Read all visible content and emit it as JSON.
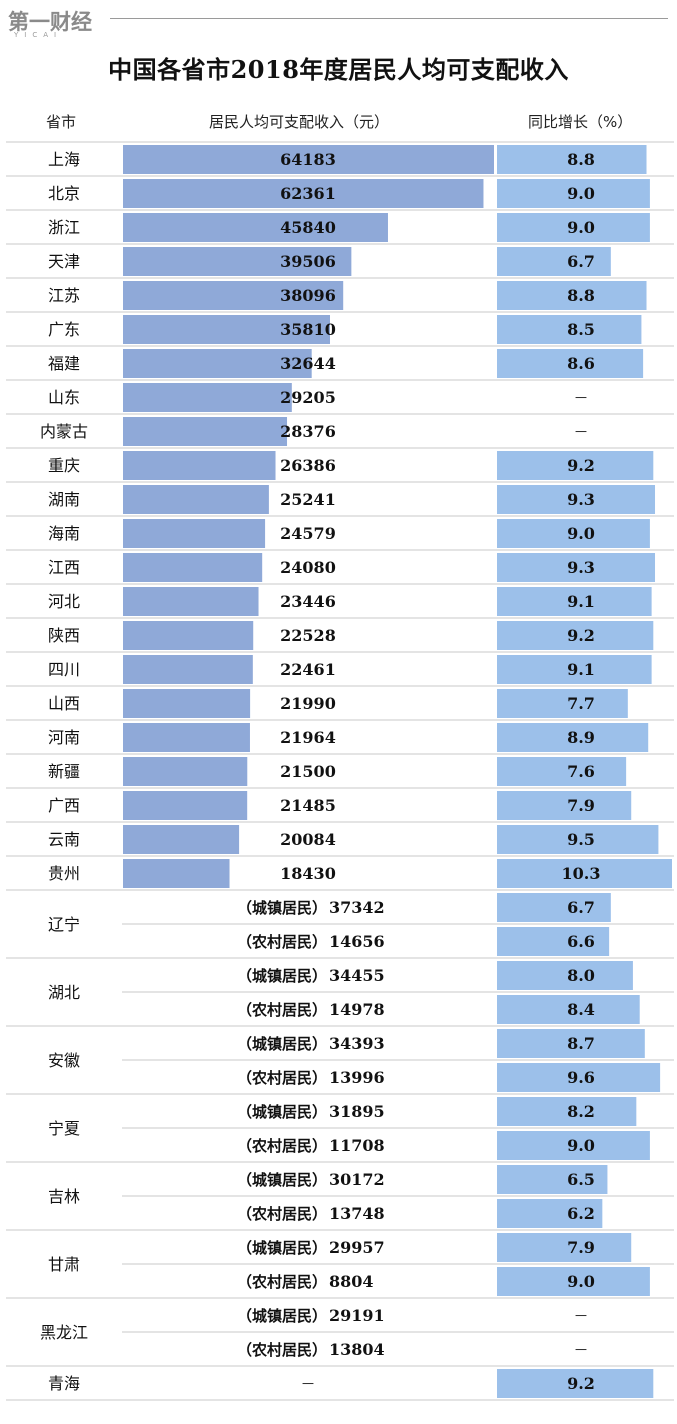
{
  "header": {
    "logo_text": "第一财经",
    "logo_sub": "YICAI"
  },
  "title": "中国各省市2018年度居民人均可支配收入",
  "columns": {
    "province": "省市",
    "income": "居民人均可支配收入（元）",
    "growth": "同比增长（%）"
  },
  "colors": {
    "income_bar": "#8fa9d8",
    "growth_bar": "#9cc0ea",
    "rule": "#c8c8c8"
  },
  "chart_data": {
    "type": "bar",
    "title": "中国各省市2018年度居民人均可支配收入",
    "income_unit": "元",
    "growth_unit": "%",
    "missing_mark": "－",
    "rows": [
      {
        "province": "上海",
        "income": 64183,
        "growth": "8.8"
      },
      {
        "province": "北京",
        "income": 62361,
        "growth": "9.0"
      },
      {
        "province": "浙江",
        "income": 45840,
        "growth": "9.0"
      },
      {
        "province": "天津",
        "income": 39506,
        "growth": "6.7"
      },
      {
        "province": "江苏",
        "income": 38096,
        "growth": "8.8"
      },
      {
        "province": "广东",
        "income": 35810,
        "growth": "8.5"
      },
      {
        "province": "福建",
        "income": 32644,
        "growth": "8.6"
      },
      {
        "province": "山东",
        "income": 29205,
        "growth": null
      },
      {
        "province": "内蒙古",
        "income": 28376,
        "growth": null
      },
      {
        "province": "重庆",
        "income": 26386,
        "growth": "9.2"
      },
      {
        "province": "湖南",
        "income": 25241,
        "growth": "9.3"
      },
      {
        "province": "海南",
        "income": 24579,
        "growth": "9.0"
      },
      {
        "province": "江西",
        "income": 24080,
        "growth": "9.3"
      },
      {
        "province": "河北",
        "income": 23446,
        "growth": "9.1"
      },
      {
        "province": "陕西",
        "income": 22528,
        "growth": "9.2"
      },
      {
        "province": "四川",
        "income": 22461,
        "growth": "9.1"
      },
      {
        "province": "山西",
        "income": 21990,
        "growth": "7.7"
      },
      {
        "province": "河南",
        "income": 21964,
        "growth": "8.9"
      },
      {
        "province": "新疆",
        "income": 21500,
        "growth": "7.6"
      },
      {
        "province": "广西",
        "income": 21485,
        "growth": "7.9"
      },
      {
        "province": "云南",
        "income": 20084,
        "growth": "9.5"
      },
      {
        "province": "贵州",
        "income": 18430,
        "growth": "10.3"
      }
    ],
    "split_rows": [
      {
        "province": "辽宁",
        "items": [
          {
            "label": "（城镇居民）",
            "income": 37342,
            "growth": "6.7"
          },
          {
            "label": "（农村居民）",
            "income": 14656,
            "growth": "6.6"
          }
        ]
      },
      {
        "province": "湖北",
        "items": [
          {
            "label": "（城镇居民）",
            "income": 34455,
            "growth": "8.0"
          },
          {
            "label": "（农村居民）",
            "income": 14978,
            "growth": "8.4"
          }
        ]
      },
      {
        "province": "安徽",
        "items": [
          {
            "label": "（城镇居民）",
            "income": 34393,
            "growth": "8.7"
          },
          {
            "label": "（农村居民）",
            "income": 13996,
            "growth": "9.6"
          }
        ]
      },
      {
        "province": "宁夏",
        "items": [
          {
            "label": "（城镇居民）",
            "income": 31895,
            "growth": "8.2"
          },
          {
            "label": "（农村居民）",
            "income": 11708,
            "growth": "9.0"
          }
        ]
      },
      {
        "province": "吉林",
        "items": [
          {
            "label": "（城镇居民）",
            "income": 30172,
            "growth": "6.5"
          },
          {
            "label": "（农村居民）",
            "income": 13748,
            "growth": "6.2"
          }
        ]
      },
      {
        "province": "甘肃",
        "items": [
          {
            "label": "（城镇居民）",
            "income": 29957,
            "growth": "7.9"
          },
          {
            "label": "（农村居民）",
            "income": 8804,
            "growth": "9.0"
          }
        ]
      },
      {
        "province": "黑龙江",
        "items": [
          {
            "label": "（城镇居民）",
            "income": 29191,
            "growth": null
          },
          {
            "label": "（农村居民）",
            "income": 13804,
            "growth": null
          }
        ]
      },
      {
        "province": "青海",
        "items": [
          {
            "label": "",
            "income": null,
            "growth": "9.2"
          }
        ]
      }
    ]
  }
}
